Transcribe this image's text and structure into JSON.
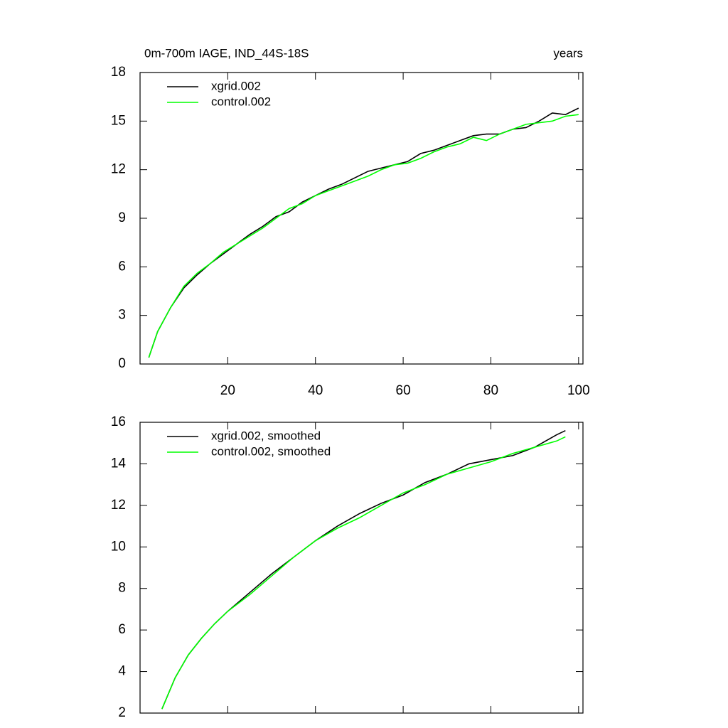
{
  "chart_data": [
    {
      "type": "line",
      "title": "0m-700m IAGE, IND_44S-18S",
      "subtitle": "years",
      "x": [
        2,
        4,
        7,
        10,
        13,
        16,
        19,
        22,
        25,
        28,
        31,
        34,
        37,
        40,
        43,
        46,
        49,
        52,
        55,
        58,
        61,
        64,
        67,
        70,
        73,
        76,
        79,
        82,
        85,
        88,
        91,
        94,
        97,
        100
      ],
      "series": [
        {
          "name": "xgrid.002",
          "color": "#000000",
          "values": [
            0.4,
            2.0,
            3.5,
            4.7,
            5.5,
            6.2,
            6.8,
            7.4,
            8.0,
            8.5,
            9.1,
            9.4,
            10.0,
            10.4,
            10.8,
            11.1,
            11.5,
            11.9,
            12.1,
            12.3,
            12.5,
            13.0,
            13.2,
            13.5,
            13.8,
            14.1,
            14.2,
            14.2,
            14.5,
            14.6,
            15.0,
            15.5,
            15.4,
            15.8
          ]
        },
        {
          "name": "control.002",
          "color": "#00ff00",
          "values": [
            0.4,
            2.0,
            3.5,
            4.8,
            5.6,
            6.2,
            6.9,
            7.4,
            7.9,
            8.4,
            9.0,
            9.6,
            9.9,
            10.4,
            10.7,
            11.0,
            11.3,
            11.6,
            12.0,
            12.3,
            12.4,
            12.7,
            13.1,
            13.4,
            13.6,
            14.0,
            13.8,
            14.2,
            14.5,
            14.8,
            14.9,
            15.0,
            15.3,
            15.4
          ]
        }
      ],
      "xlim": [
        0,
        101
      ],
      "xticks": [
        20,
        40,
        60,
        80,
        100
      ],
      "show_xtick_labels": true,
      "ylim": [
        0,
        18
      ],
      "yticks": [
        0,
        3,
        6,
        9,
        12,
        15,
        18
      ]
    },
    {
      "type": "line",
      "x": [
        5,
        8,
        11,
        14,
        17,
        20,
        25,
        30,
        35,
        40,
        45,
        50,
        55,
        60,
        65,
        70,
        75,
        80,
        85,
        90,
        95,
        97
      ],
      "series": [
        {
          "name": "xgrid.002, smoothed",
          "color": "#000000",
          "values": [
            2.2,
            3.7,
            4.8,
            5.6,
            6.3,
            6.9,
            7.8,
            8.7,
            9.5,
            10.3,
            11.0,
            11.6,
            12.1,
            12.5,
            13.1,
            13.5,
            14.0,
            14.2,
            14.4,
            14.8,
            15.4,
            15.6
          ]
        },
        {
          "name": "control.002, smoothed",
          "color": "#00ff00",
          "values": [
            2.2,
            3.7,
            4.8,
            5.6,
            6.3,
            6.9,
            7.7,
            8.6,
            9.5,
            10.3,
            10.9,
            11.4,
            12.0,
            12.6,
            13.0,
            13.5,
            13.8,
            14.1,
            14.5,
            14.8,
            15.1,
            15.3
          ]
        }
      ],
      "xlim": [
        0,
        101
      ],
      "xticks": [
        20,
        40,
        60,
        80,
        100
      ],
      "show_xtick_labels": false,
      "ylim": [
        2,
        16
      ],
      "yticks": [
        2,
        4,
        6,
        8,
        10,
        12,
        14,
        16
      ]
    }
  ]
}
